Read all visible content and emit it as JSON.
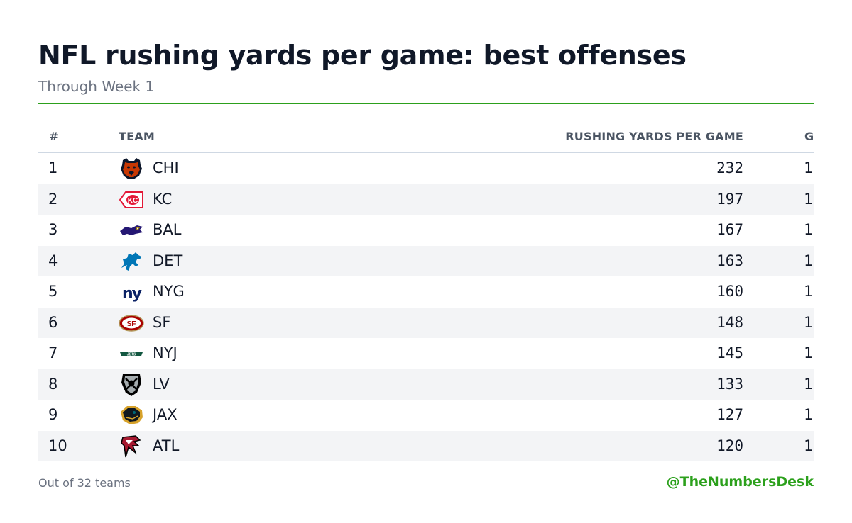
{
  "header": {
    "title": "NFL rushing yards per game: best offenses",
    "subtitle": "Through Week 1"
  },
  "colors": {
    "accent": "#2ca01c",
    "header_text": "#4b5563",
    "row_stripe": "#f3f4f6"
  },
  "chart_data": {
    "type": "table",
    "columns": [
      "#",
      "TEAM",
      "RUSHING YARDS PER GAME",
      "G"
    ],
    "rows": [
      {
        "rank": "1",
        "team": "CHI",
        "logo": "chicago-bears-logo",
        "value": "232",
        "g": "1"
      },
      {
        "rank": "2",
        "team": "KC",
        "logo": "kansas-city-chiefs-logo",
        "value": "197",
        "g": "1"
      },
      {
        "rank": "3",
        "team": "BAL",
        "logo": "baltimore-ravens-logo",
        "value": "167",
        "g": "1"
      },
      {
        "rank": "4",
        "team": "DET",
        "logo": "detroit-lions-logo",
        "value": "163",
        "g": "1"
      },
      {
        "rank": "5",
        "team": "NYG",
        "logo": "new-york-giants-logo",
        "value": "160",
        "g": "1"
      },
      {
        "rank": "6",
        "team": "SF",
        "logo": "san-francisco-49ers-logo",
        "value": "148",
        "g": "1"
      },
      {
        "rank": "7",
        "team": "NYJ",
        "logo": "new-york-jets-logo",
        "value": "145",
        "g": "1"
      },
      {
        "rank": "8",
        "team": "LV",
        "logo": "las-vegas-raiders-logo",
        "value": "133",
        "g": "1"
      },
      {
        "rank": "9",
        "team": "JAX",
        "logo": "jacksonville-jaguars-logo",
        "value": "127",
        "g": "1"
      },
      {
        "rank": "10",
        "team": "ATL",
        "logo": "atlanta-falcons-logo",
        "value": "120",
        "g": "1"
      }
    ]
  },
  "footer": {
    "note": "Out of 32 teams",
    "credit": "@TheNumbersDesk"
  }
}
